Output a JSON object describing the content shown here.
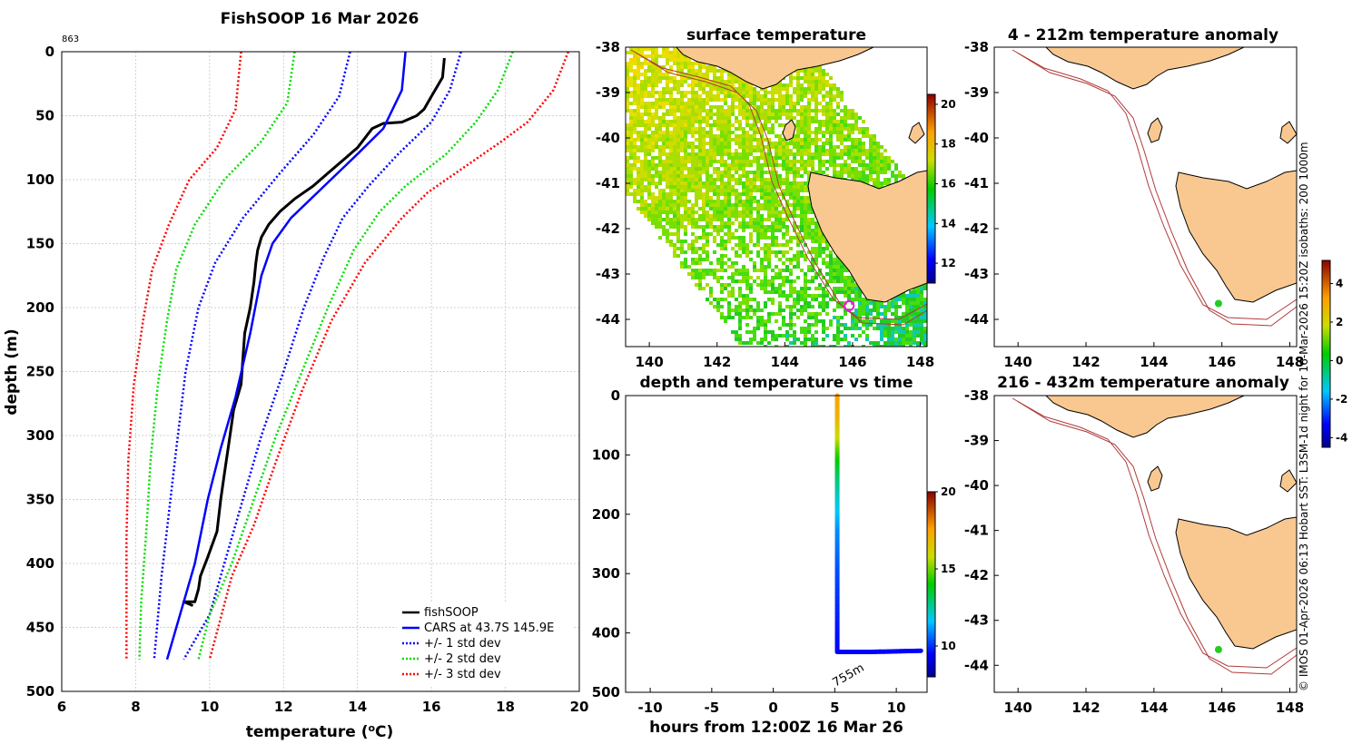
{
  "title": "FishSOOP 16 Mar 2026",
  "corner_id": "863",
  "colors": {
    "land": "#f9c891",
    "isobath": "#b03a3a",
    "fishsoop": "#000000",
    "cars": "#0000ff",
    "std1": "#0000ff",
    "std2": "#00dd00",
    "std3": "#ff0000",
    "marker": "#22cc22",
    "ring": "#ff00ff"
  },
  "chart_data": [
    {
      "type": "line",
      "title": "FishSOOP 16 Mar 2026",
      "xlabel": "temperature (",
      "xlabel_sup": "o",
      "xlabel_end": "C)",
      "ylabel": "depth (m)",
      "xlim": [
        6,
        20
      ],
      "ylim": [
        500,
        0
      ],
      "xticks": [
        "6",
        "8",
        "10",
        "12",
        "14",
        "16",
        "18",
        "20"
      ],
      "yticks": [
        "0",
        "50",
        "100",
        "150",
        "200",
        "250",
        "300",
        "350",
        "400",
        "450",
        "500"
      ],
      "grid": true,
      "legend_position": "bottom-right",
      "series": [
        {
          "key": "fishsoop",
          "name": "fishSOOP",
          "style": "solid",
          "points": [
            [
              16.35,
              5
            ],
            [
              16.3,
              20
            ],
            [
              16.0,
              35
            ],
            [
              15.8,
              45
            ],
            [
              15.6,
              50
            ],
            [
              15.2,
              55
            ],
            [
              14.7,
              56
            ],
            [
              14.4,
              60
            ],
            [
              14.0,
              75
            ],
            [
              13.6,
              85
            ],
            [
              13.2,
              95
            ],
            [
              12.8,
              105
            ],
            [
              12.3,
              115
            ],
            [
              11.9,
              125
            ],
            [
              11.6,
              135
            ],
            [
              11.4,
              145
            ],
            [
              11.3,
              155
            ],
            [
              11.25,
              165
            ],
            [
              11.2,
              180
            ],
            [
              11.1,
              200
            ],
            [
              10.95,
              220
            ],
            [
              10.9,
              240
            ],
            [
              10.85,
              260
            ],
            [
              10.65,
              280
            ],
            [
              10.55,
              300
            ],
            [
              10.4,
              330
            ],
            [
              10.3,
              350
            ],
            [
              10.2,
              375
            ],
            [
              9.95,
              395
            ],
            [
              9.75,
              410
            ],
            [
              9.7,
              420
            ],
            [
              9.6,
              430
            ],
            [
              9.3,
              430
            ],
            [
              9.55,
              433
            ]
          ]
        },
        {
          "key": "cars",
          "name": "CARS at 43.7S 145.9E",
          "style": "solid",
          "points": [
            [
              15.3,
              0
            ],
            [
              15.2,
              30
            ],
            [
              14.7,
              60
            ],
            [
              14.0,
              80
            ],
            [
              13.1,
              105
            ],
            [
              12.2,
              130
            ],
            [
              11.7,
              150
            ],
            [
              11.4,
              175
            ],
            [
              11.1,
              220
            ],
            [
              10.7,
              270
            ],
            [
              10.3,
              310
            ],
            [
              9.95,
              350
            ],
            [
              9.6,
              400
            ],
            [
              9.2,
              440
            ],
            [
              8.85,
              475
            ]
          ]
        },
        {
          "key": "std1lo",
          "name": "+/- 1 std dev",
          "style": "dot",
          "points": [
            [
              13.8,
              0
            ],
            [
              13.5,
              35
            ],
            [
              12.8,
              65
            ],
            [
              11.9,
              95
            ],
            [
              10.9,
              130
            ],
            [
              10.15,
              165
            ],
            [
              9.7,
              200
            ],
            [
              9.35,
              250
            ],
            [
              9.1,
              310
            ],
            [
              8.9,
              360
            ],
            [
              8.7,
              410
            ],
            [
              8.5,
              475
            ]
          ]
        },
        {
          "key": "std1hi",
          "name": "",
          "style": "dot",
          "points": [
            [
              16.8,
              0
            ],
            [
              16.5,
              30
            ],
            [
              16.0,
              55
            ],
            [
              15.1,
              80
            ],
            [
              14.3,
              105
            ],
            [
              13.6,
              130
            ],
            [
              13.1,
              160
            ],
            [
              12.55,
              200
            ],
            [
              12.0,
              250
            ],
            [
              11.4,
              300
            ],
            [
              10.9,
              350
            ],
            [
              10.4,
              400
            ],
            [
              10.0,
              440
            ],
            [
              9.3,
              475
            ]
          ]
        },
        {
          "key": "std2lo",
          "name": "+/- 2 std dev",
          "style": "dot",
          "points": [
            [
              12.3,
              0
            ],
            [
              12.1,
              40
            ],
            [
              11.4,
              70
            ],
            [
              10.4,
              100
            ],
            [
              9.6,
              135
            ],
            [
              9.1,
              170
            ],
            [
              8.85,
              210
            ],
            [
              8.6,
              260
            ],
            [
              8.4,
              320
            ],
            [
              8.3,
              370
            ],
            [
              8.15,
              430
            ],
            [
              8.1,
              475
            ]
          ]
        },
        {
          "key": "std2hi",
          "name": "",
          "style": "dot",
          "points": [
            [
              18.2,
              0
            ],
            [
              17.8,
              30
            ],
            [
              17.2,
              55
            ],
            [
              16.4,
              80
            ],
            [
              15.3,
              105
            ],
            [
              14.6,
              125
            ],
            [
              13.9,
              155
            ],
            [
              13.2,
              200
            ],
            [
              12.5,
              250
            ],
            [
              11.8,
              300
            ],
            [
              11.2,
              350
            ],
            [
              10.6,
              400
            ],
            [
              10.0,
              440
            ],
            [
              9.7,
              475
            ]
          ]
        },
        {
          "key": "std3lo",
          "name": "+/- 3 std dev",
          "style": "dot",
          "points": [
            [
              10.85,
              0
            ],
            [
              10.7,
              45
            ],
            [
              10.2,
              75
            ],
            [
              9.45,
              100
            ],
            [
              8.9,
              135
            ],
            [
              8.45,
              170
            ],
            [
              8.2,
              210
            ],
            [
              7.95,
              260
            ],
            [
              7.8,
              320
            ],
            [
              7.75,
              380
            ],
            [
              7.75,
              430
            ],
            [
              7.75,
              475
            ]
          ]
        },
        {
          "key": "std3hi",
          "name": "",
          "style": "dot",
          "points": [
            [
              19.7,
              0
            ],
            [
              19.3,
              30
            ],
            [
              18.6,
              55
            ],
            [
              17.9,
              70
            ],
            [
              16.9,
              90
            ],
            [
              15.9,
              110
            ],
            [
              15.2,
              130
            ],
            [
              14.2,
              165
            ],
            [
              13.3,
              210
            ],
            [
              12.5,
              265
            ],
            [
              11.8,
              320
            ],
            [
              11.2,
              370
            ],
            [
              10.6,
              410
            ],
            [
              10.0,
              475
            ]
          ]
        }
      ]
    },
    {
      "type": "heatmap",
      "title": "surface temperature",
      "xlim": [
        139.3,
        148.2
      ],
      "ylim": [
        -44.6,
        -38
      ],
      "xticks": [
        "140",
        "142",
        "144",
        "146",
        "148"
      ],
      "yticks": [
        "-38",
        "-39",
        "-40",
        "-41",
        "-42",
        "-43",
        "-44"
      ],
      "colorbar": {
        "range": [
          11,
          20.5
        ],
        "ticks": [
          "12",
          "14",
          "16",
          "18",
          "20"
        ]
      },
      "vessel_position": [
        145.9,
        -43.7
      ]
    },
    {
      "type": "line",
      "title": "depth and temperature vs time",
      "xlabel": "hours from 12:00Z 16 Mar 26",
      "xlim": [
        -12,
        12.5
      ],
      "ylim": [
        500,
        0
      ],
      "xticks": [
        "-10",
        "-5",
        "0",
        "5",
        "10"
      ],
      "yticks": [
        "0",
        "100",
        "200",
        "300",
        "400",
        "500"
      ],
      "colorbar": {
        "range": [
          8,
          20
        ],
        "ticks": [
          "10",
          "15",
          "20"
        ]
      },
      "annotation": "755m",
      "track": [
        [
          5.2,
          0,
          17.5
        ],
        [
          5.2,
          40,
          17.0
        ],
        [
          5.2,
          75,
          15.8
        ],
        [
          5.2,
          100,
          14.5
        ],
        [
          5.2,
          140,
          13.0
        ],
        [
          5.2,
          180,
          12.0
        ],
        [
          5.2,
          230,
          11.0
        ],
        [
          5.2,
          300,
          10.3
        ],
        [
          5.2,
          380,
          9.8
        ],
        [
          5.2,
          432,
          9.5
        ],
        [
          8.0,
          432,
          9.5
        ],
        [
          12.0,
          430,
          9.5
        ]
      ]
    },
    {
      "type": "heatmap",
      "title": "4 - 212m temperature anomaly",
      "xlim": [
        139.3,
        148.2
      ],
      "ylim": [
        -44.6,
        -38
      ],
      "xticks": [
        "140",
        "142",
        "144",
        "146",
        "148"
      ],
      "yticks": [
        "-38",
        "-39",
        "-40",
        "-41",
        "-42",
        "-43",
        "-44"
      ],
      "point": [
        145.9,
        -43.65
      ]
    },
    {
      "type": "heatmap",
      "title": "216 - 432m temperature anomaly",
      "xlim": [
        139.3,
        148.2
      ],
      "ylim": [
        -44.6,
        -38
      ],
      "xticks": [
        "140",
        "142",
        "144",
        "146",
        "148"
      ],
      "yticks": [
        "-38",
        "-39",
        "-40",
        "-41",
        "-42",
        "-43",
        "-44"
      ],
      "point": [
        145.9,
        -43.65
      ],
      "colorbar": {
        "range": [
          -4.5,
          5.2
        ],
        "ticks": [
          "-4",
          "-2",
          "0",
          "2",
          "4"
        ]
      }
    }
  ],
  "side_note": "© IMOS 01-Apr-2026 06:13 Hobart SST: L3SM-1d night for 16-Mar-2026 15:20Z isobaths: 200  1000m"
}
